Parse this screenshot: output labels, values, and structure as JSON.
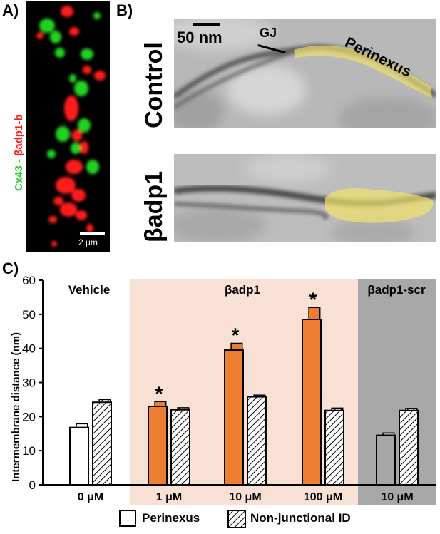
{
  "panel_a": {
    "letter": "A)",
    "label_green": "Cx43",
    "label_dash": " - ",
    "label_red": "βadp1-b",
    "scale_label": "2 μm",
    "colors": {
      "green": "#22d122",
      "red": "#ff1a1a"
    }
  },
  "panel_b": {
    "letter": "B)",
    "control_label": "Control",
    "treated_label": "βadp1",
    "scale_label": "50 nm",
    "gj_label": "GJ",
    "perinexus_label": "Perinexus",
    "highlight_color": "#f2e26a"
  },
  "panel_c": {
    "letter": "C)",
    "chart_data": {
      "type": "bar",
      "ylabel": "Intermembrane distance (nm)",
      "ylim": [
        0,
        60
      ],
      "yticks": [
        0,
        10,
        20,
        30,
        40,
        50,
        60
      ],
      "groups": [
        {
          "section": "Vehicle",
          "category": "0 μM",
          "perinexus": 16.8,
          "perinexus_err": 1.1,
          "nonjunctional": 24.2,
          "nonjunctional_err": 0.8,
          "perinexus_sig": "",
          "style": "white"
        },
        {
          "section": "βadp1",
          "category": "1 μM",
          "perinexus": 23.0,
          "perinexus_err": 1.4,
          "nonjunctional": 22.0,
          "nonjunctional_err": 0.6,
          "perinexus_sig": "*",
          "style": "orange"
        },
        {
          "section": "βadp1",
          "category": "10 μM",
          "perinexus": 39.5,
          "perinexus_err": 2.0,
          "nonjunctional": 25.8,
          "nonjunctional_err": 0.5,
          "perinexus_sig": "*",
          "style": "orange"
        },
        {
          "section": "βadp1",
          "category": "100 μM",
          "perinexus": 48.5,
          "perinexus_err": 3.5,
          "nonjunctional": 21.8,
          "nonjunctional_err": 0.7,
          "perinexus_sig": "*",
          "style": "orange"
        },
        {
          "section": "βadp1-scr",
          "category": "10 μM",
          "perinexus": 14.5,
          "perinexus_err": 0.7,
          "nonjunctional": 21.8,
          "nonjunctional_err": 0.6,
          "perinexus_sig": "",
          "style": "gray"
        }
      ],
      "sections": [
        {
          "label": "Vehicle",
          "background": "#ffffff"
        },
        {
          "label": "βadp1",
          "background": "#f8e1d4"
        },
        {
          "label": "βadp1-scr",
          "background": "#a8a8a8"
        }
      ],
      "legend": [
        {
          "label": "Perinexus",
          "pattern": "solid"
        },
        {
          "label": "Non-junctional ID",
          "pattern": "hatched"
        }
      ],
      "colors": {
        "orange": "#ed7d31",
        "white": "#ffffff",
        "gray_bar": "#a6a6a6"
      }
    }
  }
}
